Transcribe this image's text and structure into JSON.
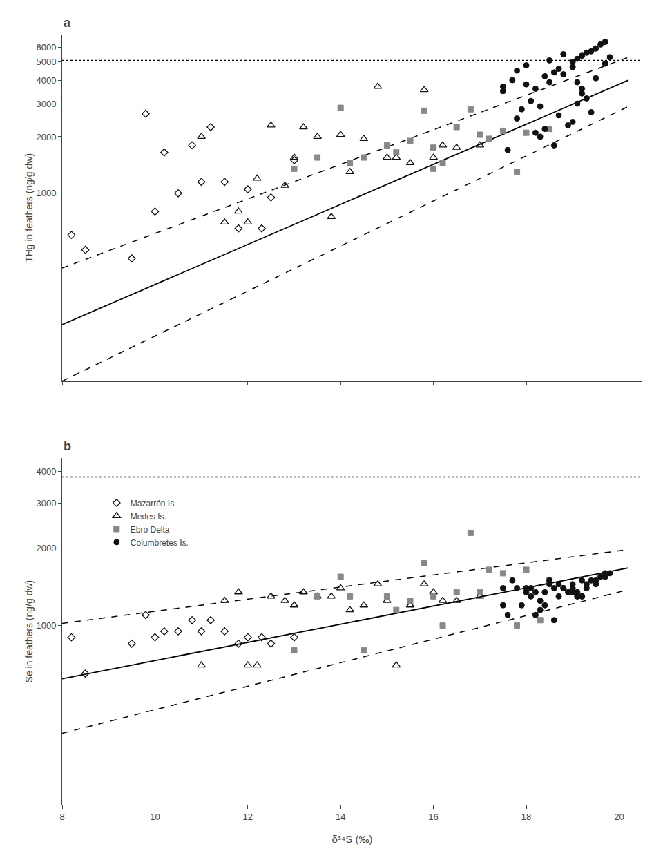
{
  "chart_data": [
    {
      "type": "scatter",
      "annotations": [
        "a"
      ],
      "ylabel": "THg in feathers (ng/g dw)",
      "xlim": [
        8,
        20.5
      ],
      "xticks": [
        8,
        10,
        12,
        14,
        16,
        18,
        20
      ],
      "ylim": [
        100,
        7000
      ],
      "yticks": [
        1000,
        2000,
        3000,
        4000,
        5000,
        6000
      ],
      "log": "y",
      "grid": false,
      "legend": false,
      "tick_labels": "y",
      "series": [
        {
          "type": "line",
          "line_style": "solid",
          "color": "#000000",
          "x": [
            8.0,
            20.2
          ],
          "values": [
            200,
            4000
          ]
        },
        {
          "type": "line",
          "line_style": "dashed",
          "color": "#000000",
          "x": [
            8.0,
            20.2
          ],
          "values": [
            400,
            5300
          ]
        },
        {
          "type": "line",
          "line_style": "dashed",
          "color": "#000000",
          "x": [
            8.0,
            20.2
          ],
          "values": [
            100,
            2900
          ]
        },
        {
          "type": "hline",
          "line_style": "dotted",
          "color": "#000000",
          "values": [
            5100
          ]
        },
        {
          "type": "scatter",
          "name": "Mazarrón Is",
          "marker": "diamond-open",
          "color": "#111111",
          "x": [
            8.2,
            9.5,
            10.0,
            10.5,
            11.0,
            11.5,
            12.0,
            12.5,
            13.0,
            11.8,
            12.3,
            10.8,
            9.8,
            11.2,
            10.2,
            8.5
          ],
          "values": [
            600,
            450,
            800,
            1000,
            1150,
            1150,
            1050,
            950,
            1500,
            650,
            650,
            1800,
            2650,
            2250,
            1650,
            500
          ]
        },
        {
          "type": "scatter",
          "name": "Medes Is.",
          "marker": "triangle-up-open",
          "color": "#111111",
          "x": [
            11.5,
            12.0,
            12.5,
            13.0,
            13.5,
            14.0,
            14.5,
            15.0,
            15.5,
            16.0,
            16.5,
            17.0,
            11.0,
            12.2,
            13.2,
            14.2,
            15.2,
            16.2,
            11.8,
            12.8,
            13.8,
            14.8,
            15.8
          ],
          "values": [
            700,
            700,
            2300,
            1550,
            2000,
            2050,
            1950,
            1550,
            1450,
            1550,
            1750,
            1800,
            2000,
            1200,
            2250,
            1300,
            1550,
            1800,
            800,
            1100,
            750,
            3700,
            3550
          ]
        },
        {
          "type": "scatter",
          "name": "Ebro Delta",
          "marker": "square",
          "color": "#888888",
          "x": [
            13.5,
            14.0,
            14.5,
            15.0,
            15.5,
            16.0,
            16.0,
            16.5,
            17.0,
            17.5,
            18.0,
            18.5,
            13.0,
            14.2,
            15.2,
            16.2,
            17.2,
            15.8,
            16.8,
            17.8
          ],
          "values": [
            1550,
            2850,
            1550,
            1800,
            1900,
            1750,
            1350,
            2250,
            2050,
            2150,
            2100,
            2200,
            1350,
            1450,
            1650,
            1450,
            1950,
            2750,
            2800,
            1300
          ]
        },
        {
          "type": "scatter",
          "name": "Columbretes Is.",
          "marker": "circle",
          "color": "#111111",
          "x": [
            17.5,
            17.7,
            17.8,
            18.0,
            18.0,
            18.2,
            18.3,
            18.4,
            18.5,
            18.5,
            18.6,
            18.7,
            18.8,
            18.9,
            19.0,
            19.0,
            19.1,
            19.1,
            19.2,
            19.2,
            19.3,
            19.4,
            19.5,
            19.5,
            19.6,
            19.7,
            19.7,
            19.8,
            18.1,
            17.9,
            18.2,
            18.6,
            18.3,
            19.0,
            19.2,
            18.8,
            17.5,
            19.3,
            18.4,
            17.8,
            19.4,
            17.6,
            19.1,
            18.7
          ],
          "values": [
            3500,
            4000,
            4500,
            3800,
            4800,
            3600,
            2900,
            4200,
            3900,
            5100,
            4400,
            4600,
            4300,
            2300,
            5000,
            4700,
            5200,
            3000,
            5400,
            3400,
            5600,
            5700,
            5900,
            4100,
            6200,
            6400,
            4900,
            5300,
            3100,
            2800,
            2100,
            1800,
            2000,
            2400,
            3600,
            5500,
            3700,
            3200,
            2200,
            2500,
            2700,
            1700,
            3900,
            2600
          ]
        }
      ]
    },
    {
      "type": "scatter",
      "annotations": [
        "b"
      ],
      "xlabel": "δ³⁴S (‰)",
      "ylabel": "Se in feathers (ng/g dw)",
      "xlim": [
        8,
        20.5
      ],
      "xticks": [
        8,
        10,
        12,
        14,
        16,
        18,
        20
      ],
      "ylim": [
        200,
        4500
      ],
      "yticks": [
        1000,
        2000,
        3000,
        4000
      ],
      "log": "y",
      "grid": false,
      "legend": "upper left",
      "series": [
        {
          "type": "line",
          "line_style": "solid",
          "color": "#000000",
          "x": [
            8.0,
            20.2
          ],
          "values": [
            620,
            1680
          ]
        },
        {
          "type": "line",
          "line_style": "dashed",
          "color": "#000000",
          "x": [
            8.0,
            20.2
          ],
          "values": [
            1020,
            1980
          ]
        },
        {
          "type": "line",
          "line_style": "dashed",
          "color": "#000000",
          "x": [
            8.0,
            20.2
          ],
          "values": [
            380,
            1380
          ]
        },
        {
          "type": "hline",
          "line_style": "dotted",
          "color": "#000000",
          "values": [
            3800
          ]
        },
        {
          "type": "scatter",
          "name": "Mazarrón Is",
          "marker": "diamond-open",
          "color": "#111111",
          "x": [
            8.2,
            9.5,
            10.0,
            10.5,
            11.0,
            11.5,
            12.0,
            12.5,
            13.0,
            11.8,
            12.3,
            10.8,
            9.8,
            11.2,
            10.2,
            8.5
          ],
          "values": [
            900,
            850,
            900,
            950,
            950,
            950,
            900,
            850,
            900,
            850,
            900,
            1050,
            1100,
            1050,
            950,
            650
          ]
        },
        {
          "type": "scatter",
          "name": "Medes Is.",
          "marker": "triangle-up-open",
          "color": "#111111",
          "x": [
            11.5,
            12.0,
            12.5,
            13.0,
            13.5,
            14.0,
            14.5,
            15.0,
            15.5,
            16.0,
            16.5,
            17.0,
            11.0,
            12.2,
            13.2,
            14.2,
            15.2,
            16.2,
            11.8,
            12.8,
            13.8,
            14.8,
            15.8
          ],
          "values": [
            1250,
            700,
            1300,
            1200,
            1300,
            1400,
            1200,
            1250,
            1200,
            1350,
            1250,
            1300,
            700,
            700,
            1350,
            1150,
            700,
            1250,
            1350,
            1250,
            1300,
            1450,
            1450
          ]
        },
        {
          "type": "scatter",
          "name": "Ebro Delta",
          "marker": "square",
          "color": "#888888",
          "x": [
            13.5,
            14.0,
            14.5,
            15.0,
            15.5,
            16.0,
            16.5,
            17.0,
            17.5,
            18.0,
            18.5,
            13.0,
            14.2,
            15.2,
            16.2,
            17.2,
            15.8,
            16.8,
            17.8,
            18.3
          ],
          "values": [
            1300,
            1550,
            800,
            1300,
            1250,
            1300,
            1350,
            1350,
            1600,
            1650,
            1500,
            800,
            1300,
            1150,
            1000,
            1650,
            1750,
            2300,
            1000,
            1050
          ]
        },
        {
          "type": "scatter",
          "name": "Columbretes Is.",
          "marker": "circle",
          "color": "#111111",
          "x": [
            17.5,
            17.7,
            17.8,
            18.0,
            18.0,
            18.2,
            18.3,
            18.4,
            18.5,
            18.5,
            18.6,
            18.7,
            18.8,
            18.9,
            19.0,
            19.0,
            19.1,
            19.1,
            19.2,
            19.2,
            19.3,
            19.4,
            19.5,
            19.5,
            19.6,
            19.7,
            19.7,
            19.8,
            18.1,
            17.9,
            18.2,
            18.6,
            18.3,
            19.0,
            19.2,
            18.8,
            17.5,
            19.3,
            18.4,
            17.6,
            18.1,
            19.1,
            18.7
          ],
          "values": [
            1400,
            1500,
            1400,
            1400,
            1350,
            1350,
            1250,
            1350,
            1500,
            1450,
            1400,
            1450,
            1400,
            1350,
            1400,
            1450,
            1350,
            1300,
            1300,
            1300,
            1450,
            1500,
            1500,
            1450,
            1550,
            1600,
            1550,
            1600,
            1300,
            1200,
            1100,
            1050,
            1150,
            1350,
            1500,
            1400,
            1200,
            1400,
            1200,
            1100,
            1400,
            1300,
            1300
          ]
        }
      ]
    }
  ]
}
